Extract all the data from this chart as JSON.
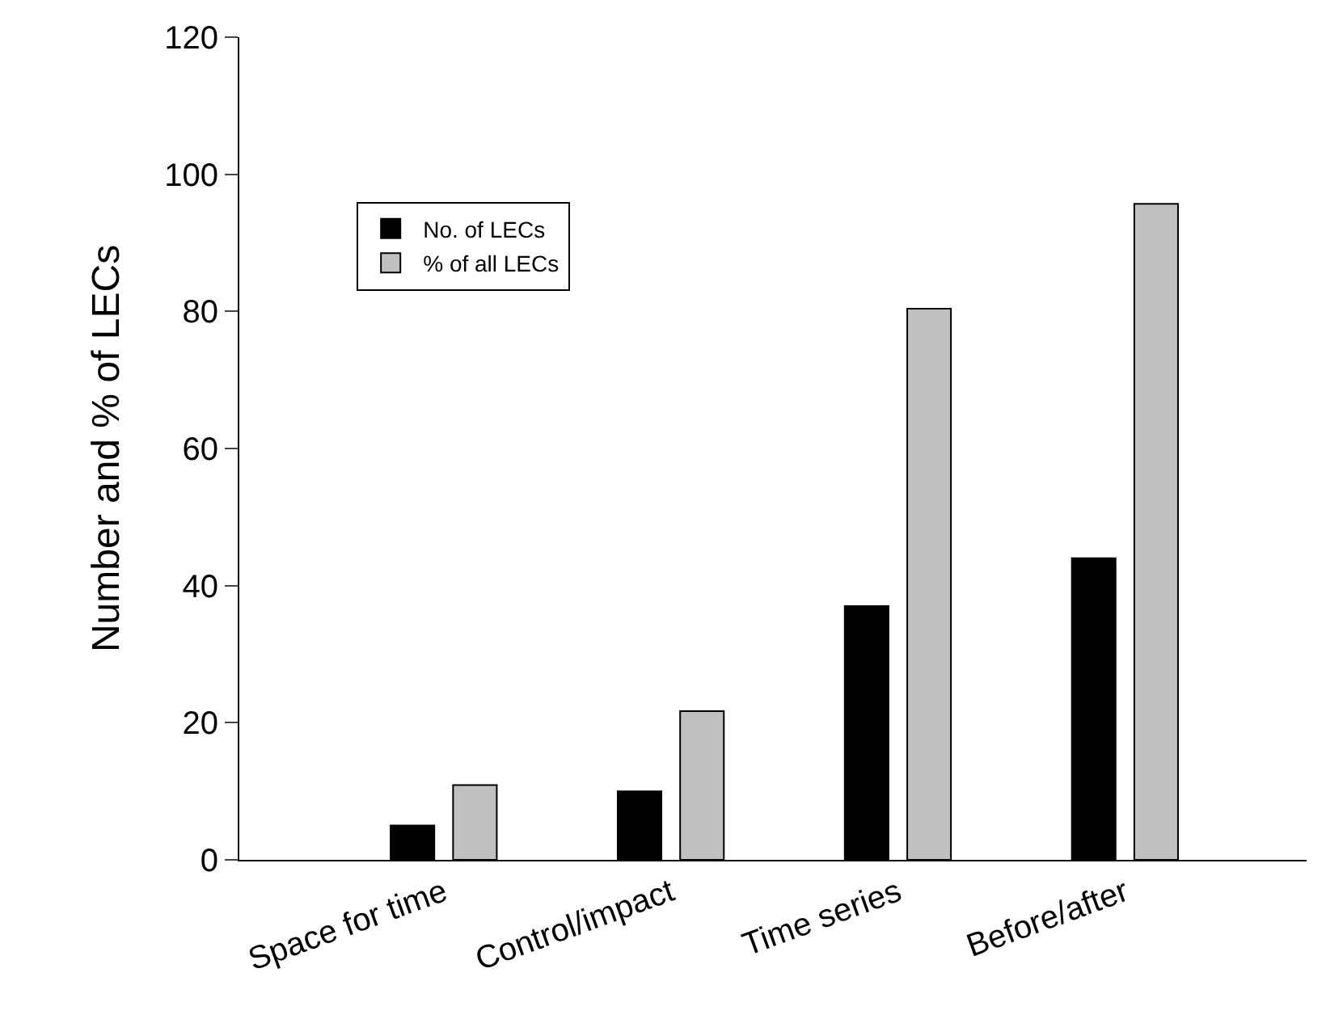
{
  "chart_data": {
    "type": "bar",
    "ylabel": "Number and % of LECs",
    "categories": [
      "Space for time",
      "Control/impact",
      "Time series",
      "Before/after"
    ],
    "series": [
      {
        "name": "No. of LECs",
        "color": "#000000",
        "values": [
          5,
          10,
          37,
          44
        ]
      },
      {
        "name": "% of all LECs",
        "color": "#c0c0c0",
        "values": [
          10.9,
          21.7,
          80.4,
          95.7
        ]
      }
    ],
    "ylim": [
      0,
      120
    ],
    "yticks": [
      0,
      20,
      40,
      60,
      80,
      100,
      120
    ],
    "grid": false,
    "legend": "top left"
  }
}
